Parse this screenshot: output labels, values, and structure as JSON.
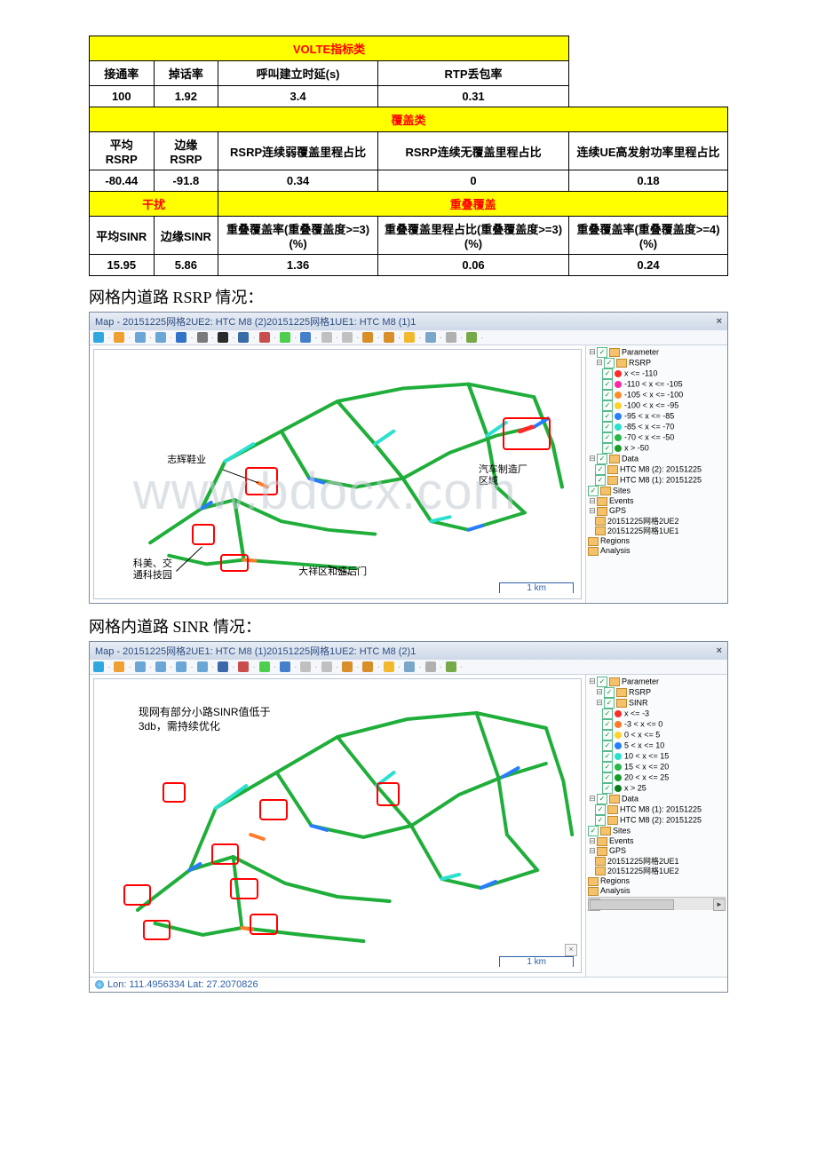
{
  "table": {
    "volte_header": "VOLTE指标类",
    "volte_cols": [
      "接通率",
      "掉话率",
      "呼叫建立时延(s)",
      "RTP丢包率"
    ],
    "volte_vals": [
      "100",
      "1.92",
      "3.4",
      "0.31"
    ],
    "coverage_header": "覆盖类",
    "coverage_cols": [
      "平均RSRP",
      "边缘RSRP",
      "RSRP连续弱覆盖里程占比",
      "RSRP连续无覆盖里程占比",
      "连续UE高发射功率里程占比"
    ],
    "coverage_vals": [
      "-80.44",
      "-91.8",
      "0.34",
      "0",
      "0.18"
    ],
    "interference_header": "干扰",
    "overlap_header": "重叠覆盖",
    "bottom_cols": [
      "平均SINR",
      "边缘SINR",
      "重叠覆盖率(重叠覆盖度>=3)(%)",
      "重叠覆盖里程占比(重叠覆盖度>=3)(%)",
      "重叠覆盖率(重叠覆盖度>=4)(%)"
    ],
    "bottom_vals": [
      "15.95",
      "5.86",
      "1.36",
      "0.06",
      "0.24"
    ]
  },
  "section1_title": "网格内道路 RSRP 情况：",
  "section2_title": "网格内道路 SINR 情况：",
  "map1": {
    "title": "Map - 20151225网格2UE2: HTC M8 (2)20151225网格1UE1: HTC M8 (1)1",
    "toolbar_colors": [
      "#2fa8e0",
      "#f0a030",
      "#6aa6d6",
      "#6aa6d6",
      "#3273c9",
      "#7a7a7a",
      "#2a2a2a",
      "#3a6aa8",
      "#c94d4d",
      "#4dcf4d",
      "#447fc9",
      "#c0c0c0",
      "#c0c0c0",
      "#d88f2a",
      "#d88f2a",
      "#f2b92e",
      "#7aa7c9",
      "#b0b0b0",
      "#78a948"
    ],
    "scale_label": "1 km",
    "callouts": {
      "zhihui": "志辉鞋业",
      "kemei": "科美、交\n通科技园",
      "daxiang": "大祥区和盛后门",
      "qiche": "汽车制造厂\n区域"
    },
    "tree": {
      "root": "Parameter",
      "rsrp": "RSRP",
      "legend": [
        {
          "color": "#ff2a2a",
          "label": "x <= -110"
        },
        {
          "color": "#ff2aa2",
          "label": "-110 < x <= -105"
        },
        {
          "color": "#ff8c2a",
          "label": "-105 < x <= -100"
        },
        {
          "color": "#ffd22a",
          "label": "-100 < x <= -95"
        },
        {
          "color": "#2a7cff",
          "label": "-95 < x <= -85"
        },
        {
          "color": "#2ae0d0",
          "label": "-85 < x <= -70"
        },
        {
          "color": "#2ab84a",
          "label": "-70 < x <= -50"
        },
        {
          "color": "#1a9c28",
          "label": "x > -50"
        }
      ],
      "data": "Data",
      "data_items": [
        "HTC M8 (2): 20151225",
        "HTC M8 (1): 20151225"
      ],
      "sites": "Sites",
      "events": "Events",
      "gps": "GPS",
      "gps_items": [
        "20151225网格2UE2",
        "20151225网格1UE1"
      ],
      "regions": "Regions",
      "analysis": "Analysis"
    },
    "watermark": "www.bdocx.com"
  },
  "map2": {
    "title": "Map - 20151225网格2UE1: HTC M8 (1)20151225网格1UE2: HTC M8 (2)1",
    "toolbar_colors": [
      "#2fa8e0",
      "#f0a030",
      "#6aa6d6",
      "#6aa6d6",
      "#6aa6d6",
      "#6aa6d6",
      "#3a6aa8",
      "#c94d4d",
      "#4dcf4d",
      "#447fc9",
      "#c0c0c0",
      "#c0c0c0",
      "#d88f2a",
      "#d88f2a",
      "#f2b92e",
      "#7aa7c9",
      "#b0b0b0",
      "#78a948"
    ],
    "scale_label": "1 km",
    "note": "现网有部分小路SINR值低于3db，需持续优化",
    "latlon": "Lon:  111.4956334  Lat:  27.2070826",
    "tree": {
      "root": "Parameter",
      "rsrp": "RSRP",
      "sinr": "SINR",
      "legend": [
        {
          "color": "#ff2a2a",
          "label": "x <= -3"
        },
        {
          "color": "#ff7a2a",
          "label": "-3 < x <= 0"
        },
        {
          "color": "#ffd22a",
          "label": "0 < x <= 5"
        },
        {
          "color": "#2a7cff",
          "label": "5 < x <= 10"
        },
        {
          "color": "#2ae0d0",
          "label": "10 < x <= 15"
        },
        {
          "color": "#2ab84a",
          "label": "15 < x <= 20"
        },
        {
          "color": "#1a9c28",
          "label": "20 < x <= 25"
        },
        {
          "color": "#0b7a1a",
          "label": "x > 25"
        }
      ],
      "data": "Data",
      "data_items": [
        "HTC M8 (1): 20151225",
        "HTC M8 (2): 20151225"
      ],
      "sites": "Sites",
      "events": "Events",
      "gps": "GPS",
      "gps_items": [
        "20151225网格2UE1",
        "20151225网格1UE2"
      ],
      "regions": "Regions",
      "analysis": "Analysis"
    }
  }
}
